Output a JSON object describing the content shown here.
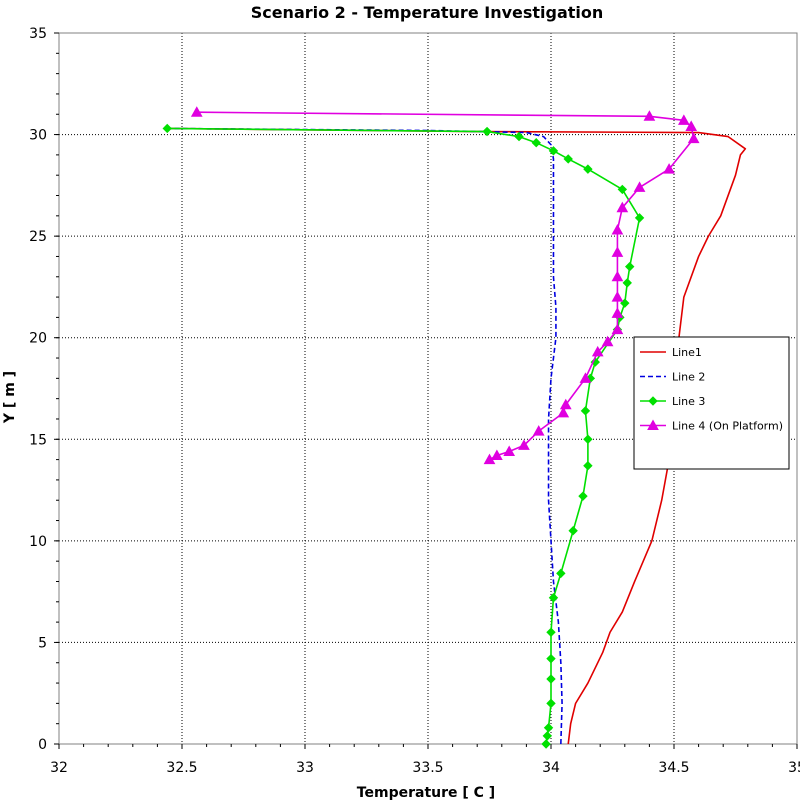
{
  "chart_data": {
    "type": "line",
    "title": "Scenario 2 - Temperature Investigation",
    "xlabel": "Temperature [ C ]",
    "ylabel": "Y [ m ]",
    "xlim": [
      32,
      35
    ],
    "ylim": [
      0,
      35
    ],
    "xticks": [
      "32",
      "32.5",
      "33",
      "33.5",
      "34",
      "34.5",
      "35"
    ],
    "yticks": [
      "0",
      "5",
      "10",
      "15",
      "20",
      "25",
      "30",
      "35"
    ],
    "grid": true,
    "legend_position": "right",
    "series": [
      {
        "name": "Line1",
        "color": "#e00000",
        "dash": "solid",
        "marker": "none",
        "points": [
          [
            34.07,
            0
          ],
          [
            34.08,
            1
          ],
          [
            34.1,
            2
          ],
          [
            34.15,
            3
          ],
          [
            34.21,
            4.5
          ],
          [
            34.24,
            5.5
          ],
          [
            34.29,
            6.5
          ],
          [
            34.34,
            8
          ],
          [
            34.41,
            10
          ],
          [
            34.45,
            12
          ],
          [
            34.48,
            14
          ],
          [
            34.49,
            16
          ],
          [
            34.5,
            18
          ],
          [
            34.52,
            20
          ],
          [
            34.54,
            22
          ],
          [
            34.6,
            24
          ],
          [
            34.64,
            25
          ],
          [
            34.69,
            26
          ],
          [
            34.75,
            28
          ],
          [
            34.77,
            29
          ],
          [
            34.79,
            29.3
          ],
          [
            34.72,
            29.9
          ],
          [
            34.6,
            30.1
          ],
          [
            33.7,
            30.15
          ],
          [
            32.44,
            30.3
          ]
        ]
      },
      {
        "name": "Line 2",
        "color": "#0000e0",
        "dash": "dashed",
        "marker": "none",
        "points": [
          [
            34.04,
            0
          ],
          [
            34.045,
            2
          ],
          [
            34.04,
            4
          ],
          [
            34.03,
            6
          ],
          [
            34.01,
            8
          ],
          [
            34.0,
            10
          ],
          [
            33.99,
            12
          ],
          [
            33.99,
            14
          ],
          [
            33.99,
            16
          ],
          [
            34.0,
            18
          ],
          [
            34.02,
            20
          ],
          [
            34.02,
            21.5
          ],
          [
            34.01,
            23
          ],
          [
            34.01,
            25
          ],
          [
            34.01,
            27
          ],
          [
            34.01,
            28.8
          ],
          [
            34.0,
            29.5
          ],
          [
            33.97,
            29.9
          ],
          [
            33.9,
            30.1
          ],
          [
            33.5,
            30.2
          ],
          [
            32.44,
            30.3
          ]
        ]
      },
      {
        "name": "Line 3",
        "color": "#00e000",
        "dash": "solid",
        "marker": "diamond",
        "points": [
          [
            33.98,
            0
          ],
          [
            33.985,
            0.4
          ],
          [
            33.99,
            0.8
          ],
          [
            34.0,
            2
          ],
          [
            34.0,
            3.2
          ],
          [
            34.0,
            4.2
          ],
          [
            34.0,
            5.5
          ],
          [
            34.01,
            7.2
          ],
          [
            34.04,
            8.4
          ],
          [
            34.09,
            10.5
          ],
          [
            34.13,
            12.2
          ],
          [
            34.15,
            13.7
          ],
          [
            34.15,
            15
          ],
          [
            34.14,
            16.4
          ],
          [
            34.16,
            18
          ],
          [
            34.18,
            18.8
          ],
          [
            34.27,
            20.4
          ],
          [
            34.28,
            21
          ],
          [
            34.3,
            21.7
          ],
          [
            34.31,
            22.7
          ],
          [
            34.32,
            23.5
          ],
          [
            34.36,
            25.9
          ],
          [
            34.29,
            27.3
          ],
          [
            34.15,
            28.3
          ],
          [
            34.07,
            28.8
          ],
          [
            34.01,
            29.2
          ],
          [
            33.94,
            29.6
          ],
          [
            33.87,
            29.9
          ],
          [
            33.74,
            30.15
          ],
          [
            32.44,
            30.3
          ]
        ]
      },
      {
        "name": "Line 4 (On Platform)",
        "color": "#e000e0",
        "dash": "solid",
        "marker": "triangle",
        "points": [
          [
            33.75,
            14
          ],
          [
            33.78,
            14.2
          ],
          [
            33.83,
            14.4
          ],
          [
            33.89,
            14.7
          ],
          [
            33.95,
            15.4
          ],
          [
            34.05,
            16.3
          ],
          [
            34.06,
            16.7
          ],
          [
            34.14,
            18
          ],
          [
            34.19,
            19.3
          ],
          [
            34.23,
            19.8
          ],
          [
            34.27,
            20.4
          ],
          [
            34.27,
            21.2
          ],
          [
            34.27,
            22
          ],
          [
            34.27,
            23
          ],
          [
            34.27,
            24.2
          ],
          [
            34.27,
            25.3
          ],
          [
            34.29,
            26.4
          ],
          [
            34.36,
            27.4
          ],
          [
            34.48,
            28.3
          ],
          [
            34.58,
            29.8
          ],
          [
            34.57,
            30.4
          ],
          [
            34.54,
            30.7
          ],
          [
            34.4,
            30.9
          ],
          [
            32.56,
            31.1
          ]
        ]
      }
    ]
  }
}
